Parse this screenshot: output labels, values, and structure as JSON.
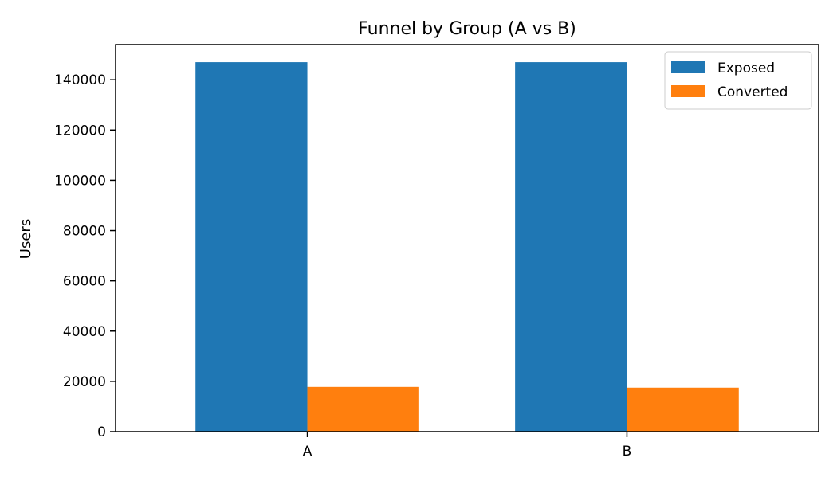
{
  "chart_data": {
    "type": "bar",
    "title": "Funnel by Group (A vs B)",
    "xlabel": "",
    "ylabel": "Users",
    "categories": [
      "A",
      "B"
    ],
    "series": [
      {
        "name": "Exposed",
        "color": "#1f77b4",
        "values": [
          147000,
          147000
        ]
      },
      {
        "name": "Converted",
        "color": "#ff7f0e",
        "values": [
          17800,
          17500
        ]
      }
    ],
    "ylim": [
      0,
      154000
    ],
    "yticks": [
      0,
      20000,
      40000,
      60000,
      80000,
      100000,
      120000,
      140000
    ],
    "grid": false,
    "legend_position": "top-right"
  }
}
